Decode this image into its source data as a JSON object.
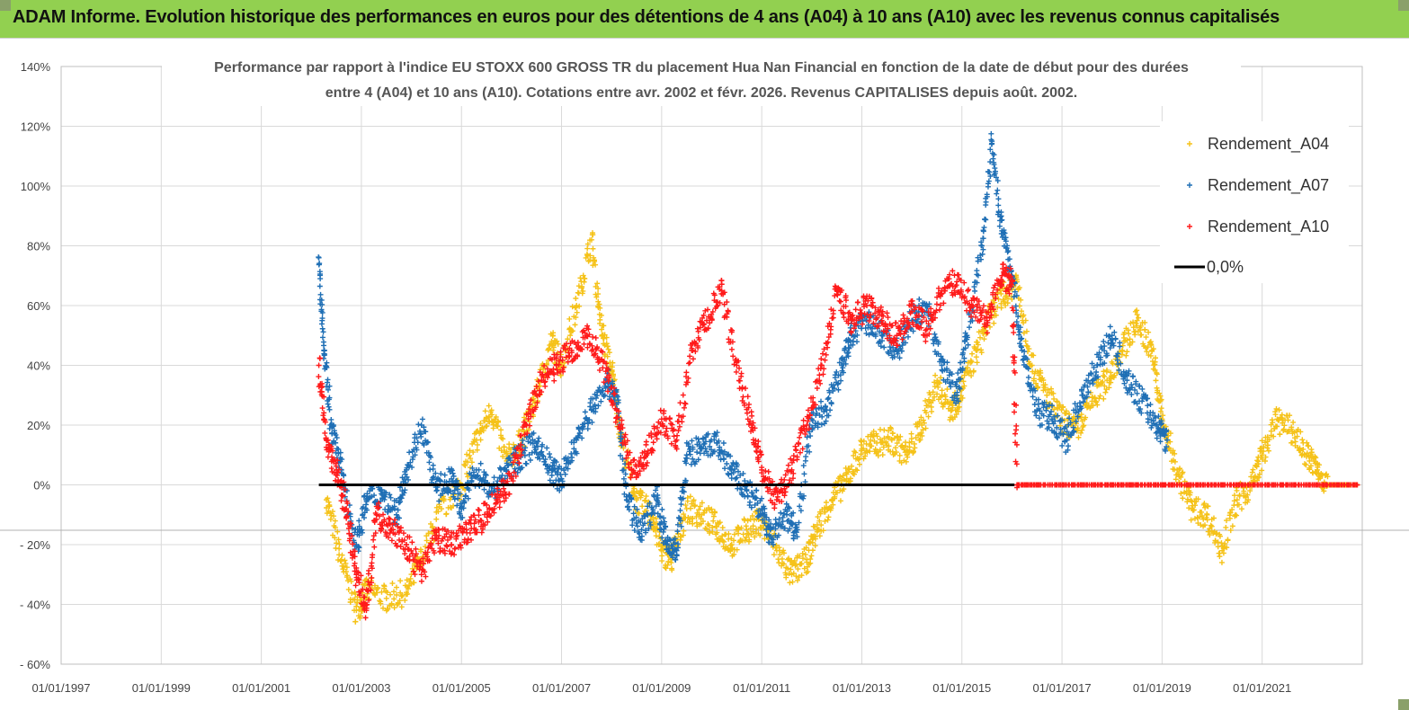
{
  "banner": {
    "title": "ADAM Informe. Evolution historique des performances en euros pour des détentions de 4 ans (A04) à 10 ans (A10) avec les revenus connus capitalisés",
    "color": "#92d050"
  },
  "chart_data": {
    "type": "scatter",
    "title_line1": "Performance par rapport à l'indice EU STOXX 600 GROSS TR  du placement Hua Nan Financial  en fonction de la date de début pour des durées",
    "title_line2": "entre 4 (A04) et 10 ans (A10). Cotations entre avr. 2002 et févr. 2026. Revenus CAPITALISES depuis août. 2002.",
    "x_tick_labels": [
      "01/01/1997",
      "01/01/1999",
      "01/01/2001",
      "01/01/2003",
      "01/01/2005",
      "01/01/2007",
      "01/01/2009",
      "01/01/2011",
      "01/01/2013",
      "01/01/2015",
      "01/01/2017",
      "01/01/2019",
      "01/01/2021"
    ],
    "x_range": [
      1997.0,
      2023.0
    ],
    "y_tick_labels": [
      "140%",
      "120%",
      "100%",
      "80%",
      "60%",
      "40%",
      "20%",
      "0%",
      "- 20%",
      "- 40%",
      "- 60%"
    ],
    "y_range": [
      -60,
      140
    ],
    "legend_position": "top-right",
    "grid": true,
    "reference_line": {
      "name": "0,0%",
      "value": 0,
      "color": "#000000"
    },
    "series": [
      {
        "name": "Rendement_A04",
        "color": "#f5c218",
        "points": [
          [
            2002.3,
            -5
          ],
          [
            2002.6,
            -25
          ],
          [
            2002.9,
            -42
          ],
          [
            2003.1,
            -35
          ],
          [
            2003.5,
            -38
          ],
          [
            2003.9,
            -36
          ],
          [
            2004.2,
            -25
          ],
          [
            2004.6,
            -8
          ],
          [
            2005.0,
            0
          ],
          [
            2005.3,
            15
          ],
          [
            2005.6,
            25
          ],
          [
            2005.9,
            8
          ],
          [
            2006.2,
            15
          ],
          [
            2006.5,
            30
          ],
          [
            2006.8,
            48
          ],
          [
            2007.0,
            40
          ],
          [
            2007.3,
            60
          ],
          [
            2007.6,
            82
          ],
          [
            2007.8,
            52
          ],
          [
            2008.0,
            38
          ],
          [
            2008.2,
            15
          ],
          [
            2008.5,
            -5
          ],
          [
            2008.8,
            -10
          ],
          [
            2009.0,
            -22
          ],
          [
            2009.2,
            -25
          ],
          [
            2009.5,
            -8
          ],
          [
            2009.8,
            -10
          ],
          [
            2010.1,
            -14
          ],
          [
            2010.4,
            -20
          ],
          [
            2010.7,
            -15
          ],
          [
            2011.0,
            -12
          ],
          [
            2011.3,
            -22
          ],
          [
            2011.6,
            -30
          ],
          [
            2011.9,
            -25
          ],
          [
            2012.1,
            -15
          ],
          [
            2012.4,
            -5
          ],
          [
            2012.7,
            2
          ],
          [
            2013.0,
            12
          ],
          [
            2013.3,
            14
          ],
          [
            2013.6,
            15
          ],
          [
            2013.9,
            10
          ],
          [
            2014.2,
            20
          ],
          [
            2014.5,
            34
          ],
          [
            2014.8,
            25
          ],
          [
            2015.0,
            32
          ],
          [
            2015.3,
            45
          ],
          [
            2015.6,
            58
          ],
          [
            2015.9,
            65
          ],
          [
            2016.1,
            68
          ],
          [
            2016.4,
            40
          ],
          [
            2016.7,
            30
          ],
          [
            2017.0,
            22
          ],
          [
            2017.3,
            18
          ],
          [
            2017.6,
            28
          ],
          [
            2017.9,
            35
          ],
          [
            2018.2,
            45
          ],
          [
            2018.5,
            55
          ],
          [
            2018.8,
            45
          ],
          [
            2019.0,
            22
          ],
          [
            2019.3,
            5
          ],
          [
            2019.6,
            -8
          ],
          [
            2019.9,
            -10
          ],
          [
            2020.2,
            -22
          ],
          [
            2020.5,
            -5
          ],
          [
            2020.8,
            0
          ],
          [
            2021.0,
            10
          ],
          [
            2021.3,
            22
          ],
          [
            2021.6,
            18
          ],
          [
            2021.9,
            10
          ],
          [
            2022.1,
            5
          ],
          [
            2022.3,
            0
          ],
          [
            2022.6,
            0
          ],
          [
            2022.9,
            0
          ]
        ]
      },
      {
        "name": "Rendement_A07",
        "color": "#1f6fb5",
        "points": [
          [
            2002.15,
            76
          ],
          [
            2002.25,
            45
          ],
          [
            2002.4,
            20
          ],
          [
            2002.6,
            5
          ],
          [
            2002.9,
            -20
          ],
          [
            2003.1,
            -5
          ],
          [
            2003.4,
            -3
          ],
          [
            2003.7,
            -10
          ],
          [
            2003.9,
            5
          ],
          [
            2004.2,
            20
          ],
          [
            2004.5,
            -2
          ],
          [
            2004.8,
            2
          ],
          [
            2005.0,
            -8
          ],
          [
            2005.3,
            5
          ],
          [
            2005.6,
            -2
          ],
          [
            2005.9,
            5
          ],
          [
            2006.2,
            10
          ],
          [
            2006.5,
            14
          ],
          [
            2006.8,
            5
          ],
          [
            2007.0,
            2
          ],
          [
            2007.3,
            15
          ],
          [
            2007.6,
            25
          ],
          [
            2007.9,
            35
          ],
          [
            2008.1,
            30
          ],
          [
            2008.3,
            -5
          ],
          [
            2008.6,
            -15
          ],
          [
            2008.9,
            -5
          ],
          [
            2009.1,
            -20
          ],
          [
            2009.3,
            -22
          ],
          [
            2009.5,
            10
          ],
          [
            2009.8,
            12
          ],
          [
            2010.1,
            14
          ],
          [
            2010.4,
            5
          ],
          [
            2010.7,
            -2
          ],
          [
            2011.0,
            -8
          ],
          [
            2011.2,
            -18
          ],
          [
            2011.5,
            -10
          ],
          [
            2011.7,
            -15
          ],
          [
            2012.0,
            22
          ],
          [
            2012.3,
            25
          ],
          [
            2012.6,
            40
          ],
          [
            2012.8,
            50
          ],
          [
            2013.1,
            55
          ],
          [
            2013.4,
            50
          ],
          [
            2013.7,
            45
          ],
          [
            2014.0,
            55
          ],
          [
            2014.3,
            60
          ],
          [
            2014.6,
            40
          ],
          [
            2014.9,
            30
          ],
          [
            2015.1,
            50
          ],
          [
            2015.4,
            80
          ],
          [
            2015.6,
            115
          ],
          [
            2015.8,
            85
          ],
          [
            2016.0,
            70
          ],
          [
            2016.2,
            45
          ],
          [
            2016.5,
            25
          ],
          [
            2016.8,
            22
          ],
          [
            2017.1,
            15
          ],
          [
            2017.4,
            30
          ],
          [
            2017.7,
            40
          ],
          [
            2018.0,
            50
          ],
          [
            2018.3,
            35
          ],
          [
            2018.6,
            28
          ],
          [
            2018.9,
            20
          ],
          [
            2019.1,
            15
          ]
        ]
      },
      {
        "name": "Rendement_A10",
        "color": "#ff1a1a",
        "points": [
          [
            2002.15,
            40
          ],
          [
            2002.3,
            15
          ],
          [
            2002.5,
            5
          ],
          [
            2002.7,
            -8
          ],
          [
            2002.9,
            -30
          ],
          [
            2003.1,
            -42
          ],
          [
            2003.3,
            -10
          ],
          [
            2003.6,
            -15
          ],
          [
            2003.9,
            -20
          ],
          [
            2004.2,
            -30
          ],
          [
            2004.5,
            -18
          ],
          [
            2004.8,
            -20
          ],
          [
            2005.1,
            -15
          ],
          [
            2005.4,
            -12
          ],
          [
            2005.7,
            -5
          ],
          [
            2006.0,
            2
          ],
          [
            2006.3,
            20
          ],
          [
            2006.6,
            35
          ],
          [
            2006.9,
            40
          ],
          [
            2007.2,
            45
          ],
          [
            2007.5,
            50
          ],
          [
            2007.8,
            42
          ],
          [
            2008.1,
            25
          ],
          [
            2008.4,
            5
          ],
          [
            2008.7,
            10
          ],
          [
            2009.0,
            22
          ],
          [
            2009.3,
            15
          ],
          [
            2009.6,
            45
          ],
          [
            2009.9,
            55
          ],
          [
            2010.2,
            65
          ],
          [
            2010.5,
            40
          ],
          [
            2010.8,
            20
          ],
          [
            2011.0,
            5
          ],
          [
            2011.3,
            -5
          ],
          [
            2011.6,
            5
          ],
          [
            2011.9,
            20
          ],
          [
            2012.2,
            40
          ],
          [
            2012.5,
            65
          ],
          [
            2012.8,
            55
          ],
          [
            2013.1,
            60
          ],
          [
            2013.4,
            55
          ],
          [
            2013.7,
            50
          ],
          [
            2014.0,
            58
          ],
          [
            2014.3,
            52
          ],
          [
            2014.6,
            65
          ],
          [
            2014.9,
            68
          ],
          [
            2015.2,
            60
          ],
          [
            2015.5,
            55
          ],
          [
            2015.8,
            70
          ],
          [
            2016.0,
            68
          ],
          [
            2016.1,
            0
          ],
          [
            2016.5,
            0
          ],
          [
            2017.0,
            0
          ],
          [
            2017.5,
            0
          ],
          [
            2018.0,
            0
          ],
          [
            2018.5,
            0
          ],
          [
            2019.0,
            0
          ],
          [
            2019.5,
            0
          ],
          [
            2020.0,
            0
          ],
          [
            2020.5,
            0
          ],
          [
            2021.0,
            0
          ],
          [
            2021.5,
            0
          ],
          [
            2022.0,
            0
          ],
          [
            2022.5,
            0
          ],
          [
            2022.9,
            0
          ]
        ]
      }
    ]
  }
}
